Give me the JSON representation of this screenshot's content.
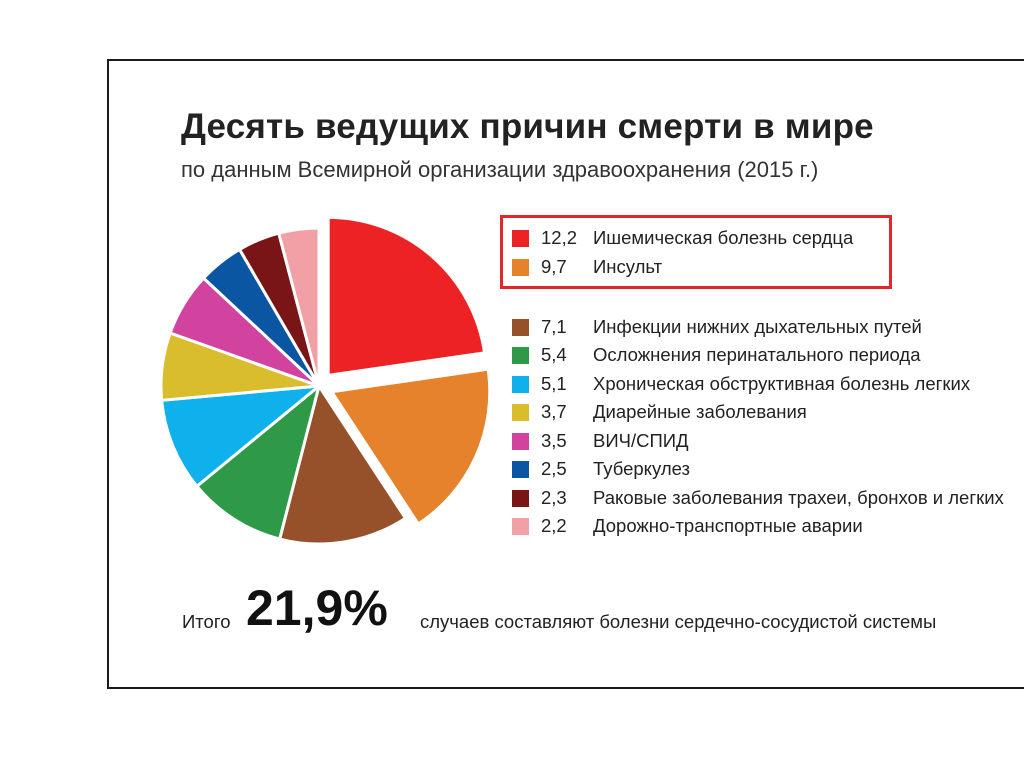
{
  "chart_data": {
    "type": "pie",
    "title": "Десять ведущих причин смерти в мире",
    "subtitle": "по данным Всемирной организации здравоохранения (2015 г.)",
    "exploded_slices": [
      0,
      1
    ],
    "slices": [
      {
        "value": 12.2,
        "value_label": "12,2",
        "label": "Ишемическая болезнь сердца",
        "color": "#ec2224"
      },
      {
        "value": 9.7,
        "value_label": "9,7",
        "label": "Инсульт",
        "color": "#e5822b"
      },
      {
        "value": 7.1,
        "value_label": "7,1",
        "label": "Инфекции нижних дыхательных путей",
        "color": "#96502a"
      },
      {
        "value": 5.4,
        "value_label": "5,4",
        "label": "Осложнения перинатального периода",
        "color": "#2e9a48"
      },
      {
        "value": 5.1,
        "value_label": "5,1",
        "label": "Хроническая обструктивная болезнь легких",
        "color": "#0fb1ec"
      },
      {
        "value": 3.7,
        "value_label": "3,7",
        "label": "Диарейные заболевания",
        "color": "#d9bd2d"
      },
      {
        "value": 3.5,
        "value_label": "3,5",
        "label": "ВИЧ/СПИД",
        "color": "#d2429f"
      },
      {
        "value": 2.5,
        "value_label": "2,5",
        "label": "Туберкулез",
        "color": "#0b56a3"
      },
      {
        "value": 2.3,
        "value_label": "2,3",
        "label": "Раковые заболевания трахеи, бронхов и легких",
        "color": "#7a1517"
      },
      {
        "value": 2.2,
        "value_label": "2,2",
        "label": "Дорожно-транспортные аварии",
        "color": "#f1a1a5"
      }
    ]
  },
  "footer": {
    "prefix": "Итого",
    "value": "21,9%",
    "suffix": "случаев составляют болезни сердечно-сосудистой системы"
  },
  "colors": {
    "highlight_border": "#e3262d",
    "frame_border": "#1a1a1a"
  }
}
